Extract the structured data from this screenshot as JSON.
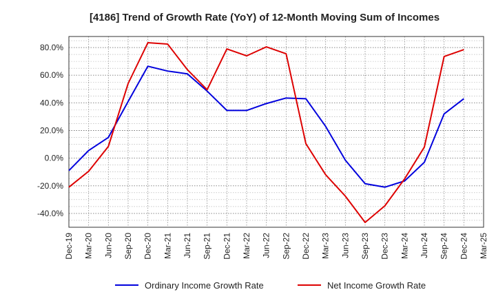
{
  "chart_data": {
    "type": "line",
    "title": "[4186]  Trend of Growth Rate (YoY) of 12-Month Moving Sum of Incomes",
    "x": [
      "Dec-19",
      "Mar-20",
      "Jun-20",
      "Sep-20",
      "Dec-20",
      "Mar-21",
      "Jun-21",
      "Sep-21",
      "Dec-21",
      "Mar-22",
      "Jun-22",
      "Sep-22",
      "Dec-22",
      "Mar-23",
      "Jun-23",
      "Sep-23",
      "Dec-23",
      "Mar-24",
      "Jun-24",
      "Sep-24",
      "Dec-24",
      "Mar-25"
    ],
    "ylim": [
      -50,
      88
    ],
    "yticks": [
      80,
      60,
      40,
      20,
      0,
      -20,
      -40
    ],
    "ytick_labels": [
      "80.0%",
      "60.0%",
      "40.0%",
      "20.0%",
      "0.0%",
      "-20.0%",
      "-40.0%"
    ],
    "grid": true,
    "legend": "bottom",
    "series": [
      {
        "name": "Ordinary Income Growth Rate",
        "color": "#0000dd",
        "values": [
          -9,
          5.5,
          15,
          41,
          66.5,
          63,
          61,
          48.5,
          34.5,
          34.5,
          39.5,
          43.5,
          43,
          23,
          -1.5,
          -18.5,
          -21,
          -16.5,
          -3,
          32,
          43,
          null
        ]
      },
      {
        "name": "Net Income Growth Rate",
        "color": "#dd0000",
        "values": [
          -21,
          -9.5,
          8.5,
          54,
          83.5,
          82.5,
          64,
          49.5,
          79,
          74,
          80.5,
          75.5,
          10.5,
          -12,
          -27.5,
          -46.5,
          -34.5,
          -15,
          8,
          73.5,
          78.5,
          null
        ]
      }
    ]
  }
}
